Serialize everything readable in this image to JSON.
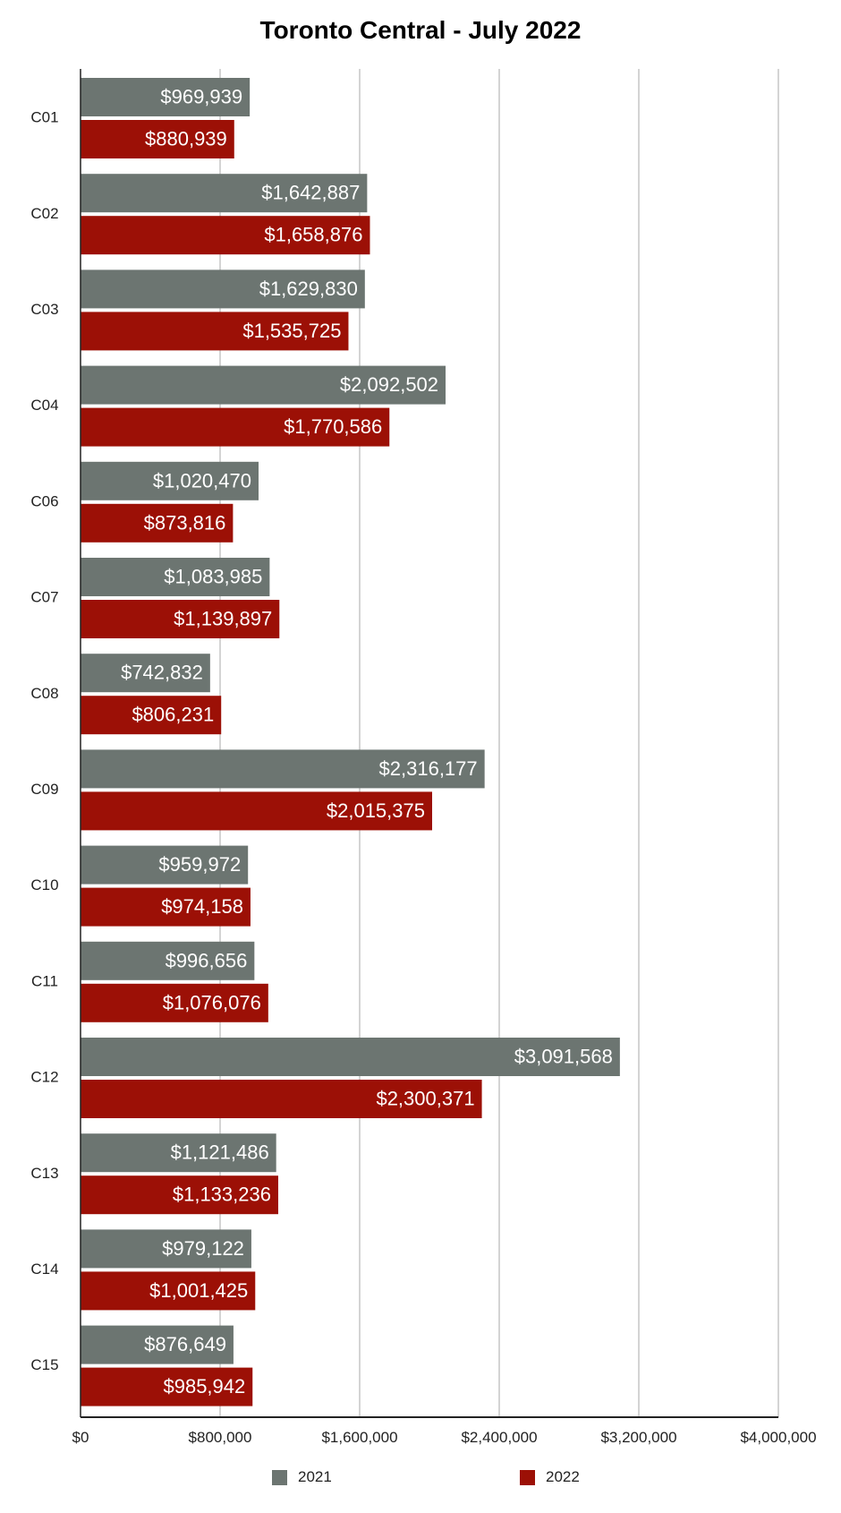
{
  "chart_data": {
    "type": "bar",
    "orientation": "horizontal",
    "title": "Toronto Central - July 2022",
    "xlabel": "",
    "ylabel": "",
    "xlim": [
      0,
      4000000
    ],
    "x_ticks": [
      {
        "value": 0,
        "label": "$0"
      },
      {
        "value": 800000,
        "label": "$800,000"
      },
      {
        "value": 1600000,
        "label": "$1,600,000"
      },
      {
        "value": 2400000,
        "label": "$2,400,000"
      },
      {
        "value": 3200000,
        "label": "$3,200,000"
      },
      {
        "value": 4000000,
        "label": "$4,000,000"
      }
    ],
    "grid": "vertical",
    "legend_position": "bottom",
    "categories": [
      "C01",
      "C02",
      "C03",
      "C04",
      "C06",
      "C07",
      "C08",
      "C09",
      "C10",
      "C11",
      "C12",
      "C13",
      "C14",
      "C15"
    ],
    "series": [
      {
        "name": "2021",
        "color": "#6c7571",
        "values": [
          969939,
          1642887,
          1629830,
          2092502,
          1020470,
          1083985,
          742832,
          2316177,
          959972,
          996656,
          3091568,
          1121486,
          979122,
          876649
        ],
        "labels": [
          "$969,939",
          "$1,642,887",
          "$1,629,830",
          "$2,092,502",
          "$1,020,470",
          "$1,083,985",
          "$742,832",
          "$2,316,177",
          "$959,972",
          "$996,656",
          "$3,091,568",
          "$1,121,486",
          "$979,122",
          "$876,649"
        ]
      },
      {
        "name": "2022",
        "color": "#9c1006",
        "values": [
          880939,
          1658876,
          1535725,
          1770586,
          873816,
          1139897,
          806231,
          2015375,
          974158,
          1076076,
          2300371,
          1133236,
          1001425,
          985942
        ],
        "labels": [
          "$880,939",
          "$1,658,876",
          "$1,535,725",
          "$1,770,586",
          "$873,816",
          "$1,139,897",
          "$806,231",
          "$2,015,375",
          "$974,158",
          "$1,076,076",
          "$2,300,371",
          "$1,133,236",
          "$1,001,425",
          "$985,942"
        ]
      }
    ]
  }
}
